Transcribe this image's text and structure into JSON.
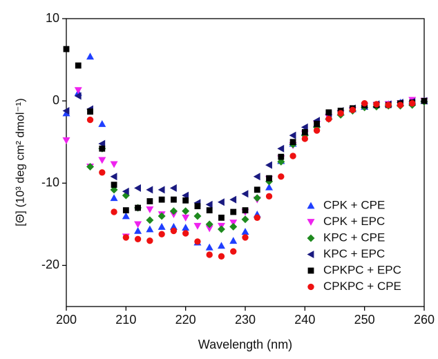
{
  "chart_data": {
    "type": "scatter",
    "x_label": "Wavelength (nm)",
    "y_label": "[Θ] (10³ deg cm² dmol⁻¹)",
    "x": [
      200,
      202,
      204,
      206,
      208,
      210,
      212,
      214,
      216,
      218,
      220,
      222,
      224,
      226,
      228,
      230,
      232,
      234,
      236,
      238,
      240,
      242,
      244,
      246,
      248,
      250,
      252,
      254,
      256,
      258,
      260
    ],
    "xlim": [
      200,
      260
    ],
    "xticks": [
      200,
      210,
      220,
      230,
      240,
      250,
      260
    ],
    "ylim": [
      -25,
      10
    ],
    "yticks": [
      -20,
      -10,
      0,
      10
    ],
    "legend": "lower right",
    "series": [
      {
        "name": "CPK + CPE",
        "color": "#1f3fff",
        "marker": "triangle-up",
        "values": [
          -1.5,
          1.0,
          5.4,
          -2.8,
          -11.8,
          -14.0,
          -15.8,
          -15.6,
          -15.3,
          -15.3,
          -15.4,
          -17.2,
          -17.8,
          -17.6,
          -17.0,
          -15.9,
          -13.8,
          -10.5,
          -7.3,
          -5.2,
          -3.8,
          -2.8,
          -1.9,
          -1.4,
          -1.0,
          -0.7,
          -0.5,
          -0.4,
          -0.2,
          0,
          0
        ]
      },
      {
        "name": "CPK + EPC",
        "color": "#ee22ee",
        "marker": "triangle-down",
        "values": [
          -4.8,
          1.3,
          -8.0,
          -7.2,
          -7.7,
          -16.5,
          -15.0,
          -13.2,
          -13.8,
          -13.8,
          -14.2,
          -15.2,
          -15.5,
          -15.2,
          -14.8,
          -13.5,
          -12.0,
          -9.5,
          -7.0,
          -5.4,
          -4.0,
          -2.8,
          -2.0,
          -1.5,
          -1.1,
          -0.6,
          -0.5,
          -0.4,
          -0.3,
          0.1,
          0
        ]
      },
      {
        "name": "KPC + CPE",
        "color": "#1e8a1e",
        "marker": "diamond",
        "values": [
          null,
          null,
          -8.0,
          -5.8,
          -10.8,
          -11.5,
          -13.0,
          -14.5,
          -14.0,
          -13.4,
          -13.4,
          -14.0,
          -15.0,
          -15.6,
          -15.3,
          -14.4,
          -11.8,
          -9.8,
          -7.4,
          -5.3,
          -4.2,
          -3.2,
          -2.2,
          -1.7,
          -1.2,
          -0.8,
          -0.7,
          -0.6,
          -0.6,
          -0.5,
          -0.1
        ]
      },
      {
        "name": "KPC + EPC",
        "color": "#1a1a80",
        "marker": "triangle-left",
        "values": [
          -1.2,
          0.6,
          -1.0,
          -5.2,
          -9.2,
          -11.0,
          -10.6,
          -10.8,
          -10.8,
          -10.6,
          -11.5,
          -12.4,
          -12.6,
          -12.3,
          -12.0,
          -11.3,
          -9.2,
          -7.8,
          -5.8,
          -4.2,
          -3.2,
          -2.4,
          -1.6,
          -1.2,
          -0.9,
          -0.6,
          -0.4,
          -0.4,
          -0.2,
          -0.1,
          0
        ]
      },
      {
        "name": "CPKPC + EPC",
        "color": "#000000",
        "marker": "square",
        "values": [
          6.3,
          4.3,
          -1.3,
          -5.8,
          -10.2,
          -13.3,
          -13.0,
          -12.2,
          -12.0,
          -12.0,
          -12.1,
          -12.8,
          -13.3,
          -14.2,
          -13.5,
          -13.3,
          -10.8,
          -9.4,
          -6.8,
          -5.0,
          -3.8,
          -2.8,
          -1.4,
          -1.2,
          -0.9,
          -0.5,
          -0.5,
          -0.5,
          -0.3,
          -0.2,
          0
        ]
      },
      {
        "name": "CPKPC + CPE",
        "color": "#ee1111",
        "marker": "circle",
        "values": [
          null,
          null,
          -2.3,
          -8.7,
          -13.5,
          -16.6,
          -16.8,
          -17.0,
          -16.2,
          -15.8,
          -16.1,
          -17.1,
          -18.7,
          -18.9,
          -18.3,
          -16.6,
          -14.2,
          -11.6,
          -9.2,
          -6.7,
          -4.6,
          -3.6,
          -2.2,
          -1.5,
          -1.1,
          -0.3,
          -0.4,
          -0.5,
          -0.5,
          -0.3,
          null
        ]
      }
    ]
  }
}
